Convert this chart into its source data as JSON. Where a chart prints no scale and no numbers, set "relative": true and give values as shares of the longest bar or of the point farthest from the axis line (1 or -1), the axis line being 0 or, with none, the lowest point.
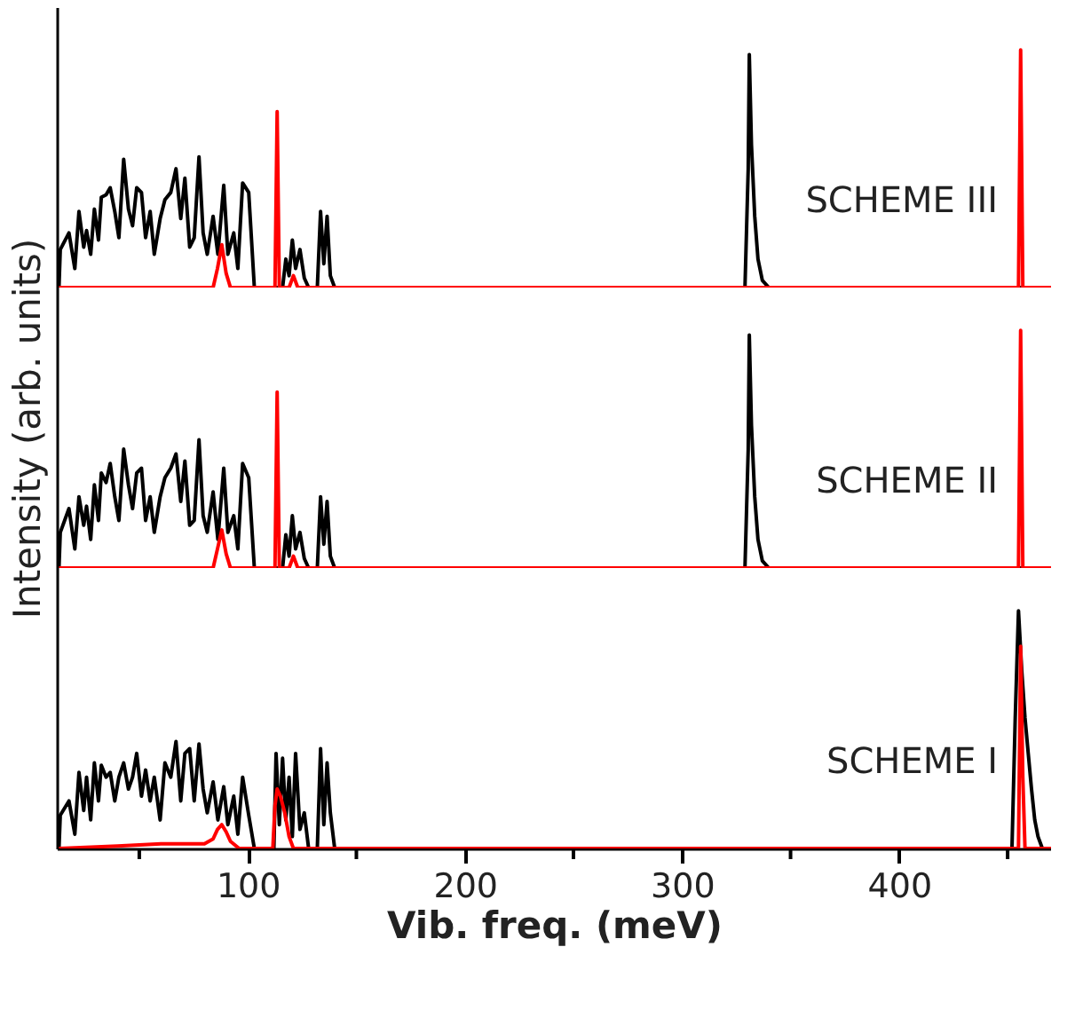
{
  "chart_data": [
    {
      "type": "line",
      "relative": true,
      "legend": false,
      "grid": false,
      "tick_labels": false,
      "xlim": [
        12,
        470
      ],
      "annotations": [
        "SCHEME III"
      ],
      "series": [
        {
          "color": "#000000",
          "x": [
            13,
            13.6,
            17.6,
            20.3,
            22.2,
            24.4,
            25.7,
            27.6,
            29.3,
            31.2,
            32.5,
            34.7,
            36.6,
            38.7,
            40.6,
            42.8,
            45,
            46.9,
            48.8,
            51,
            52.9,
            55,
            56.9,
            59.6,
            61.8,
            64.5,
            66.9,
            69.1,
            71,
            73.2,
            75.3,
            77.5,
            79.4,
            81.3,
            84,
            86.2,
            88.9,
            90.8,
            93.5,
            95.4,
            97.6,
            100.4,
            103,
            116,
            117.5,
            119,
            120.5,
            122,
            124,
            126,
            128,
            132,
            133.5,
            135,
            136.5,
            138,
            140,
            329,
            330.5,
            331,
            332,
            333.5,
            335,
            337,
            340,
            470
          ],
          "values": [
            0,
            0.16,
            0.23,
            0.08,
            0.32,
            0.17,
            0.24,
            0.14,
            0.33,
            0.2,
            0.38,
            0.39,
            0.42,
            0.32,
            0.21,
            0.54,
            0.33,
            0.26,
            0.42,
            0.4,
            0.21,
            0.32,
            0.14,
            0.29,
            0.37,
            0.4,
            0.5,
            0.29,
            0.46,
            0.17,
            0.21,
            0.55,
            0.23,
            0.14,
            0.3,
            0.14,
            0.43,
            0.14,
            0.23,
            0.08,
            0.44,
            0.4,
            0,
            0,
            0.12,
            0.05,
            0.2,
            0.08,
            0.16,
            0.04,
            0,
            0,
            0.32,
            0.1,
            0.3,
            0.05,
            0,
            0,
            0.5,
            0.98,
            0.6,
            0.3,
            0.12,
            0.03,
            0,
            0
          ]
        },
        {
          "color": "#ff0000",
          "x": [
            13,
            84,
            86,
            88,
            90,
            92,
            112.5,
            113.5,
            114.5,
            119,
            121,
            123,
            455,
            456,
            457,
            470
          ],
          "values": [
            0,
            0,
            0.08,
            0.18,
            0.06,
            0,
            0,
            0.74,
            0,
            0,
            0.05,
            0,
            0,
            1,
            0,
            0
          ]
        }
      ]
    },
    {
      "type": "line",
      "relative": true,
      "legend": false,
      "grid": false,
      "tick_labels": false,
      "ylabel": "Intensity (arb. units)",
      "xlim": [
        12,
        470
      ],
      "annotations": [
        "SCHEME II"
      ],
      "series": [
        {
          "color": "#000000",
          "x": [
            13,
            13.6,
            17.6,
            20.3,
            22.2,
            24.4,
            25.7,
            27.6,
            29.3,
            31.2,
            32.5,
            34.7,
            36.6,
            38.7,
            40.6,
            42.8,
            45,
            46.9,
            48.8,
            51,
            52.9,
            55,
            56.9,
            59.6,
            61.8,
            64.5,
            66.9,
            69.1,
            71,
            73.2,
            75.3,
            77.5,
            79.4,
            81.3,
            84,
            86.2,
            88.9,
            90.8,
            93.5,
            95.4,
            97.6,
            100.4,
            103,
            116,
            117.5,
            119,
            120.5,
            122,
            124,
            126,
            128,
            132,
            133.5,
            135,
            136.5,
            138,
            140,
            329,
            330.5,
            331,
            332,
            333.5,
            335,
            337,
            340,
            470
          ],
          "values": [
            0,
            0.15,
            0.25,
            0.08,
            0.3,
            0.18,
            0.26,
            0.12,
            0.35,
            0.2,
            0.4,
            0.36,
            0.44,
            0.3,
            0.2,
            0.5,
            0.35,
            0.25,
            0.4,
            0.42,
            0.2,
            0.3,
            0.15,
            0.3,
            0.38,
            0.42,
            0.48,
            0.28,
            0.45,
            0.18,
            0.2,
            0.54,
            0.22,
            0.15,
            0.32,
            0.12,
            0.42,
            0.15,
            0.22,
            0.08,
            0.44,
            0.38,
            0,
            0,
            0.14,
            0.05,
            0.22,
            0.08,
            0.15,
            0.04,
            0,
            0,
            0.3,
            0.1,
            0.28,
            0.05,
            0,
            0,
            0.5,
            0.98,
            0.6,
            0.3,
            0.12,
            0.03,
            0,
            0
          ]
        },
        {
          "color": "#ff0000",
          "x": [
            13,
            84,
            86,
            88,
            90,
            92,
            112.5,
            113.5,
            114.5,
            119,
            121,
            123,
            455,
            456,
            457,
            470
          ],
          "values": [
            0,
            0,
            0.08,
            0.16,
            0.06,
            0,
            0,
            0.74,
            0,
            0,
            0.05,
            0,
            0,
            1,
            0,
            0
          ]
        }
      ]
    },
    {
      "type": "line",
      "relative": true,
      "legend": false,
      "grid": false,
      "tick_labels": "x",
      "xlabel": "Vib. freq. (meV)",
      "xlim": [
        12,
        470
      ],
      "xticks": [
        {
          "value": 50,
          "label": null
        },
        100,
        {
          "value": 150,
          "label": null
        },
        200,
        {
          "value": 250,
          "label": null
        },
        300,
        {
          "value": 350,
          "label": null
        },
        400,
        {
          "value": 450,
          "label": null
        }
      ],
      "annotations": [
        "SCHEME I"
      ],
      "series": [
        {
          "color": "#000000",
          "x": [
            13,
            13.6,
            17.6,
            20.3,
            22.2,
            24.4,
            25.7,
            27.6,
            29.3,
            31.2,
            32.5,
            34.7,
            36.6,
            38.7,
            40.6,
            42.8,
            45,
            46.9,
            48.8,
            51,
            52.9,
            55,
            56.9,
            59.6,
            61.8,
            64.5,
            66.9,
            69.1,
            71,
            73.2,
            75.3,
            77.5,
            79.4,
            81.3,
            84,
            86.2,
            88.9,
            90.8,
            93.5,
            95.4,
            97.6,
            100.4,
            103,
            112,
            113,
            114.5,
            116,
            117.5,
            119,
            120.5,
            122,
            124,
            126,
            128,
            132,
            133.5,
            135,
            136.5,
            138,
            140,
            452,
            453.5,
            455,
            456.5,
            458,
            459.5,
            461,
            462.5,
            464,
            466,
            470
          ],
          "values": [
            0,
            0.14,
            0.2,
            0.06,
            0.32,
            0.16,
            0.3,
            0.12,
            0.36,
            0.2,
            0.35,
            0.3,
            0.32,
            0.2,
            0.3,
            0.36,
            0.25,
            0.3,
            0.4,
            0.22,
            0.33,
            0.2,
            0.3,
            0.12,
            0.36,
            0.3,
            0.45,
            0.2,
            0.4,
            0.42,
            0.2,
            0.44,
            0.25,
            0.15,
            0.28,
            0.12,
            0.26,
            0.1,
            0.22,
            0.06,
            0.3,
            0.14,
            0,
            0,
            0.4,
            0.1,
            0.38,
            0.12,
            0.3,
            0.05,
            0.4,
            0.08,
            0.15,
            0,
            0,
            0.42,
            0.1,
            0.36,
            0.15,
            0,
            0,
            0.55,
            1,
            0.75,
            0.55,
            0.4,
            0.25,
            0.12,
            0.05,
            0,
            0
          ]
        },
        {
          "color": "#ff0000",
          "x": [
            13,
            40,
            60,
            80,
            84,
            86,
            88,
            90,
            92,
            96,
            111.5,
            112.5,
            113.5,
            115,
            117,
            119,
            121,
            455,
            456,
            457,
            458,
            470
          ],
          "values": [
            0,
            0.01,
            0.02,
            0.02,
            0.04,
            0.08,
            0.1,
            0.07,
            0.03,
            0,
            0,
            0.18,
            0.25,
            0.22,
            0.15,
            0.05,
            0,
            0,
            0.85,
            0.3,
            0,
            0
          ]
        }
      ]
    }
  ]
}
